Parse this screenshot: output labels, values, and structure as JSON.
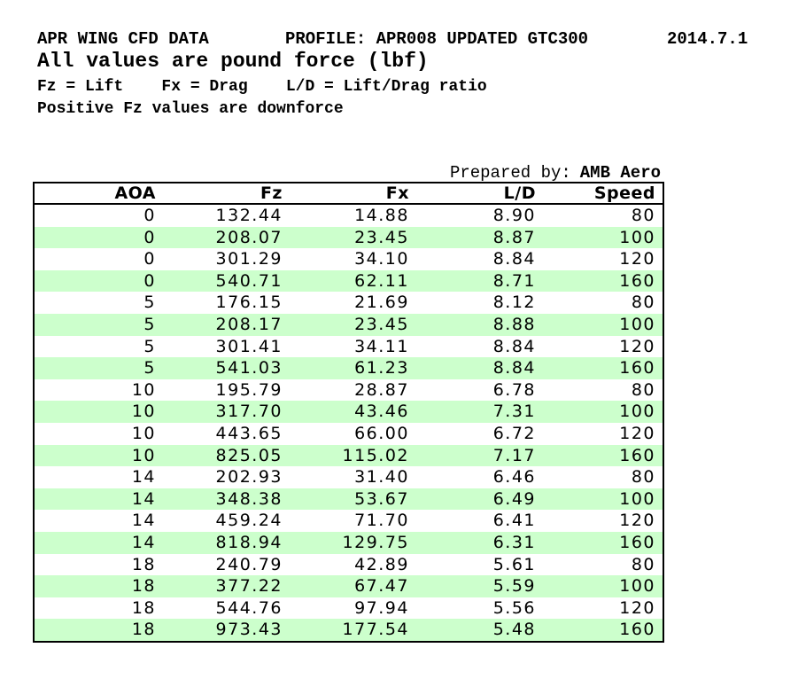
{
  "header": {
    "title": "APR WING CFD DATA",
    "profile": "PROFILE: APR008 UPDATED GTC300",
    "date": "2014.7.1",
    "subtitle": "All values are pound force (lbf)",
    "legend": "Fz = Lift    Fx = Drag    L/D = Lift/Drag ratio",
    "note": "Positive Fz values are downforce"
  },
  "prepared_by": {
    "label": "Prepared by:",
    "value": "AMB Aero"
  },
  "table": {
    "columns": [
      "AOA",
      "Fz",
      "Fx",
      "L/D",
      "Speed"
    ],
    "rows": [
      [
        "0",
        "132.44",
        "14.88",
        "8.90",
        "80"
      ],
      [
        "0",
        "208.07",
        "23.45",
        "8.87",
        "100"
      ],
      [
        "0",
        "301.29",
        "34.10",
        "8.84",
        "120"
      ],
      [
        "0",
        "540.71",
        "62.11",
        "8.71",
        "160"
      ],
      [
        "5",
        "176.15",
        "21.69",
        "8.12",
        "80"
      ],
      [
        "5",
        "208.17",
        "23.45",
        "8.88",
        "100"
      ],
      [
        "5",
        "301.41",
        "34.11",
        "8.84",
        "120"
      ],
      [
        "5",
        "541.03",
        "61.23",
        "8.84",
        "160"
      ],
      [
        "10",
        "195.79",
        "28.87",
        "6.78",
        "80"
      ],
      [
        "10",
        "317.70",
        "43.46",
        "7.31",
        "100"
      ],
      [
        "10",
        "443.65",
        "66.00",
        "6.72",
        "120"
      ],
      [
        "10",
        "825.05",
        "115.02",
        "7.17",
        "160"
      ],
      [
        "14",
        "202.93",
        "31.40",
        "6.46",
        "80"
      ],
      [
        "14",
        "348.38",
        "53.67",
        "6.49",
        "100"
      ],
      [
        "14",
        "459.24",
        "71.70",
        "6.41",
        "120"
      ],
      [
        "14",
        "818.94",
        "129.75",
        "6.31",
        "160"
      ],
      [
        "18",
        "240.79",
        "42.89",
        "5.61",
        "80"
      ],
      [
        "18",
        "377.22",
        "67.47",
        "5.59",
        "100"
      ],
      [
        "18",
        "544.76",
        "97.94",
        "5.56",
        "120"
      ],
      [
        "18",
        "973.43",
        "177.54",
        "5.48",
        "160"
      ]
    ]
  },
  "colors": {
    "row_alt_green": "#ccffcc",
    "border": "#000000",
    "text": "#000000",
    "background": "#ffffff"
  }
}
